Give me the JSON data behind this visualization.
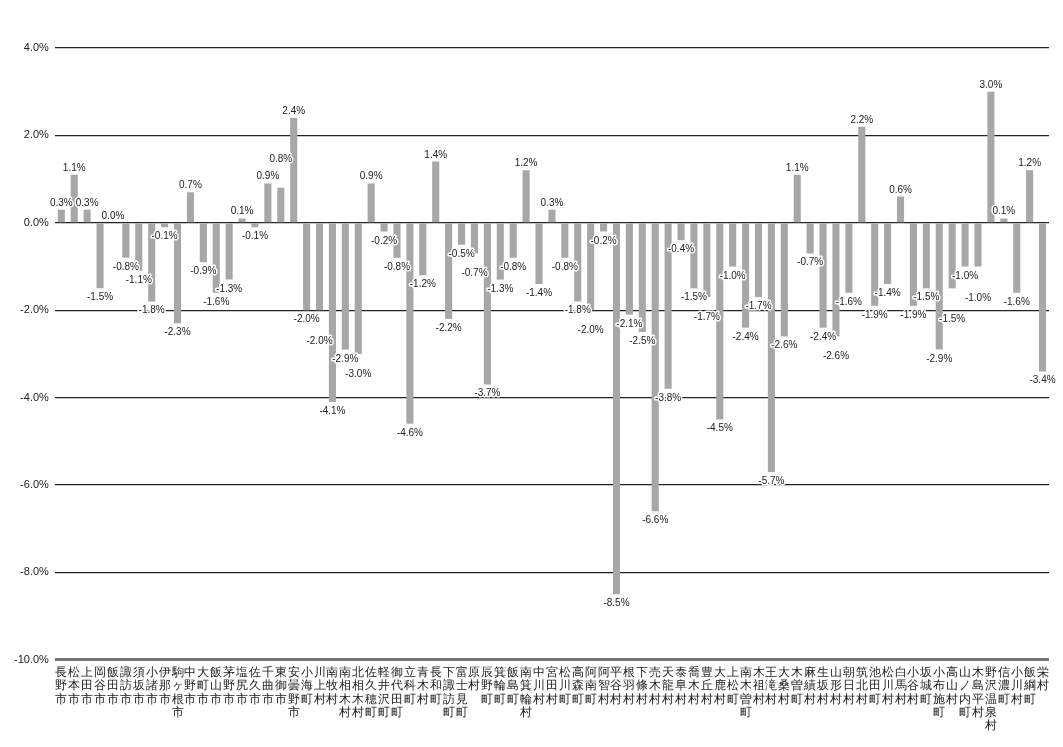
{
  "chart_data": {
    "type": "bar",
    "categories": [
      "長野市",
      "松本市",
      "上田市",
      "岡谷市",
      "飯田市",
      "諏訪市",
      "須坂市",
      "小諸市",
      "伊那市",
      "駒ヶ根市",
      "中野市",
      "大町市",
      "飯山市",
      "茅野市",
      "塩尻市",
      "佐久市",
      "千曲市",
      "東御市",
      "安曇野市",
      "小海町",
      "川上村",
      "南牧村",
      "南相木村",
      "北相木村",
      "佐久穂町",
      "軽井沢町",
      "御代田町",
      "立科町",
      "青木村",
      "長和町",
      "下諏訪町",
      "富士見町",
      "原村",
      "辰野町",
      "箕輪町",
      "飯島町",
      "南箕輪村",
      "中川村",
      "宮田村",
      "松川町",
      "高森町",
      "阿南町",
      "阿智村",
      "平谷村",
      "根羽村",
      "下條村",
      "売木村",
      "天龍村",
      "泰阜村",
      "喬木村",
      "豊丘村",
      "大鹿村",
      "上松町",
      "南木曽町",
      "木祖村",
      "王滝村",
      "大桑村",
      "木曽町",
      "麻績村",
      "生坂村",
      "山形村",
      "朝日村",
      "筑北村",
      "池田町",
      "松川村",
      "白馬村",
      "小谷村",
      "坂城町",
      "小布施町",
      "高山村",
      "山ノ内町",
      "木島平村",
      "野沢温泉村",
      "信濃町",
      "小川村",
      "飯綱町",
      "栄村"
    ],
    "values": [
      0.3,
      1.1,
      0.3,
      -1.5,
      0.0,
      -0.8,
      -1.1,
      -1.8,
      -0.1,
      -2.3,
      0.7,
      -0.9,
      -1.6,
      -1.3,
      0.1,
      -0.1,
      0.9,
      0.8,
      2.4,
      -2.0,
      -2.0,
      -4.1,
      -2.9,
      -3.0,
      0.9,
      -0.2,
      -0.8,
      -4.6,
      -1.2,
      1.4,
      -2.2,
      -0.5,
      -0.7,
      -3.7,
      -1.3,
      -0.8,
      1.2,
      -1.4,
      0.3,
      -0.8,
      -1.8,
      -2.0,
      -0.2,
      -8.5,
      -2.1,
      -2.5,
      -6.6,
      -3.8,
      -0.4,
      -1.5,
      -1.7,
      -4.5,
      -1.0,
      -2.4,
      -1.7,
      -5.7,
      -2.6,
      1.1,
      -0.7,
      -2.4,
      -2.6,
      -1.6,
      2.2,
      -1.9,
      -1.4,
      0.6,
      -1.9,
      -1.5,
      -2.9,
      -1.5,
      -1.0,
      -1.0,
      3.0,
      0.1,
      -1.6,
      1.2,
      -3.4
    ],
    "value_labels": [
      "0.3%",
      "1.1%",
      "0.3%",
      "-1.5%",
      "0.0%",
      "-0.8%",
      "-1.1%",
      "-1.8%",
      "-0.1%",
      "-2.3%",
      "0.7%",
      "-0.9%",
      "-1.6%",
      "-1.3%",
      "0.1%",
      "-0.1%",
      "0.9%",
      "0.8%",
      "2.4%",
      "-2.0%",
      "-2.0%",
      "-4.1%",
      "-2.9%",
      "-3.0%",
      "0.9%",
      "-0.2%",
      "-0.8%",
      "-4.6%",
      "-1.2%",
      "1.4%",
      "-2.2%",
      "-0.5%",
      "-0.7%",
      "-3.7%",
      "-1.3%",
      "-0.8%",
      "1.2%",
      "-1.4%",
      "0.3%",
      "-0.8%",
      "-1.8%",
      "-2.0%",
      "-0.2%",
      "-8.5%",
      "-2.1%",
      "-2.5%",
      "-6.6%",
      "-3.8%",
      "-0.4%",
      "-1.5%",
      "-1.7%",
      "-4.5%",
      "-1.0%",
      "-2.4%",
      "-1.7%",
      "-5.7%",
      "-2.6%",
      "1.1%",
      "-0.7%",
      "-2.4%",
      "-2.6%",
      "-1.6%",
      "2.2%",
      "-1.9%",
      "-1.4%",
      "0.6%",
      "-1.9%",
      "-1.5%",
      "-2.9%",
      "-1.5%",
      "-1.0%",
      "-1.0%",
      "3.0%",
      "0.1%",
      "-1.6%",
      "1.2%",
      "-3.4%"
    ],
    "color": "#a7a7a9",
    "ylim": [
      -10,
      4
    ],
    "yticks": [
      {
        "value": -10,
        "label": "-10.0%"
      },
      {
        "value": -8,
        "label": "-8.0%"
      },
      {
        "value": -6,
        "label": "-6.0%"
      },
      {
        "value": -4,
        "label": "-4.0%"
      },
      {
        "value": -2,
        "label": "-2.0%"
      },
      {
        "value": 0,
        "label": "0.0%"
      },
      {
        "value": 2,
        "label": "2.0%"
      },
      {
        "value": 4,
        "label": "4.0%"
      }
    ],
    "grid": "y",
    "legend": false
  }
}
